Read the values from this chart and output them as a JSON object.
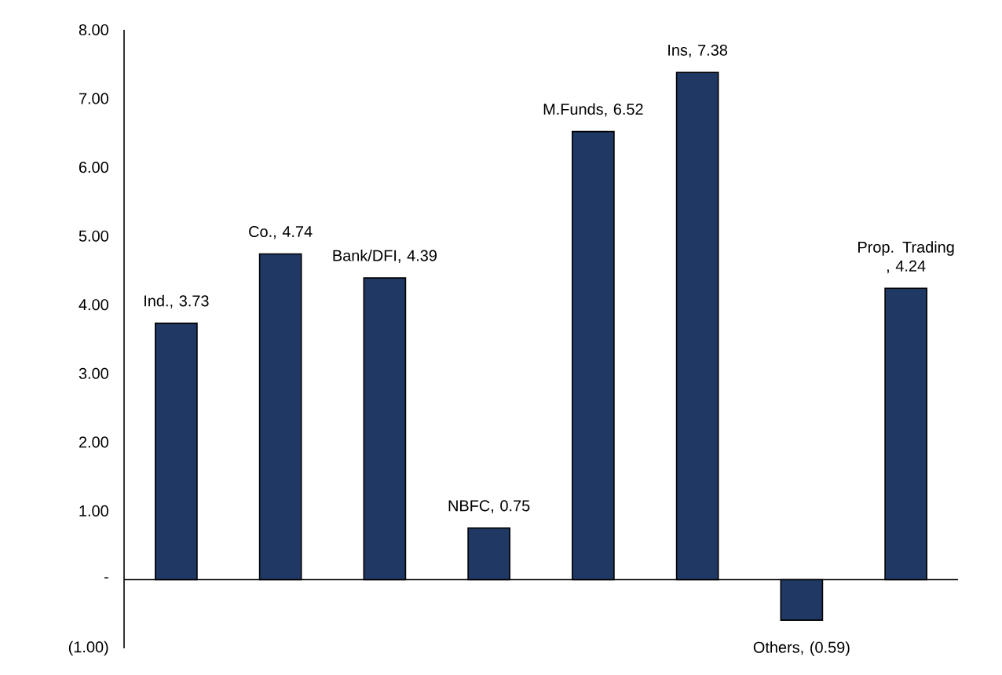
{
  "chart_data": {
    "type": "bar",
    "categories": [
      null,
      null,
      null,
      null,
      null,
      null,
      null,
      null
    ],
    "values": [
      3.73,
      4.74,
      4.39,
      0.75,
      6.52,
      7.38,
      -0.59,
      4.24
    ],
    "value_labels": [
      "Ind., 3.73",
      "Co., 4.74",
      "Bank/DFI, 4.39",
      "NBFC, 0.75",
      "M.Funds, 6.52",
      "Ins, 7.38",
      "Others, (0.59)",
      "Prop. Trading , 4.24"
    ],
    "color": "#1f3864",
    "ylim": [
      -1,
      8
    ],
    "yticks": [
      {
        "value": -1,
        "label": "(1.00)"
      },
      {
        "value": 0,
        "label": "-"
      },
      {
        "value": 1,
        "label": "1.00"
      },
      {
        "value": 2,
        "label": "2.00"
      },
      {
        "value": 3,
        "label": "3.00"
      },
      {
        "value": 4,
        "label": "4.00"
      },
      {
        "value": 5,
        "label": "5.00"
      },
      {
        "value": 6,
        "label": "6.00"
      },
      {
        "value": 7,
        "label": "7.00"
      },
      {
        "value": 8,
        "label": "8.00"
      }
    ],
    "tick_labels": "y"
  }
}
